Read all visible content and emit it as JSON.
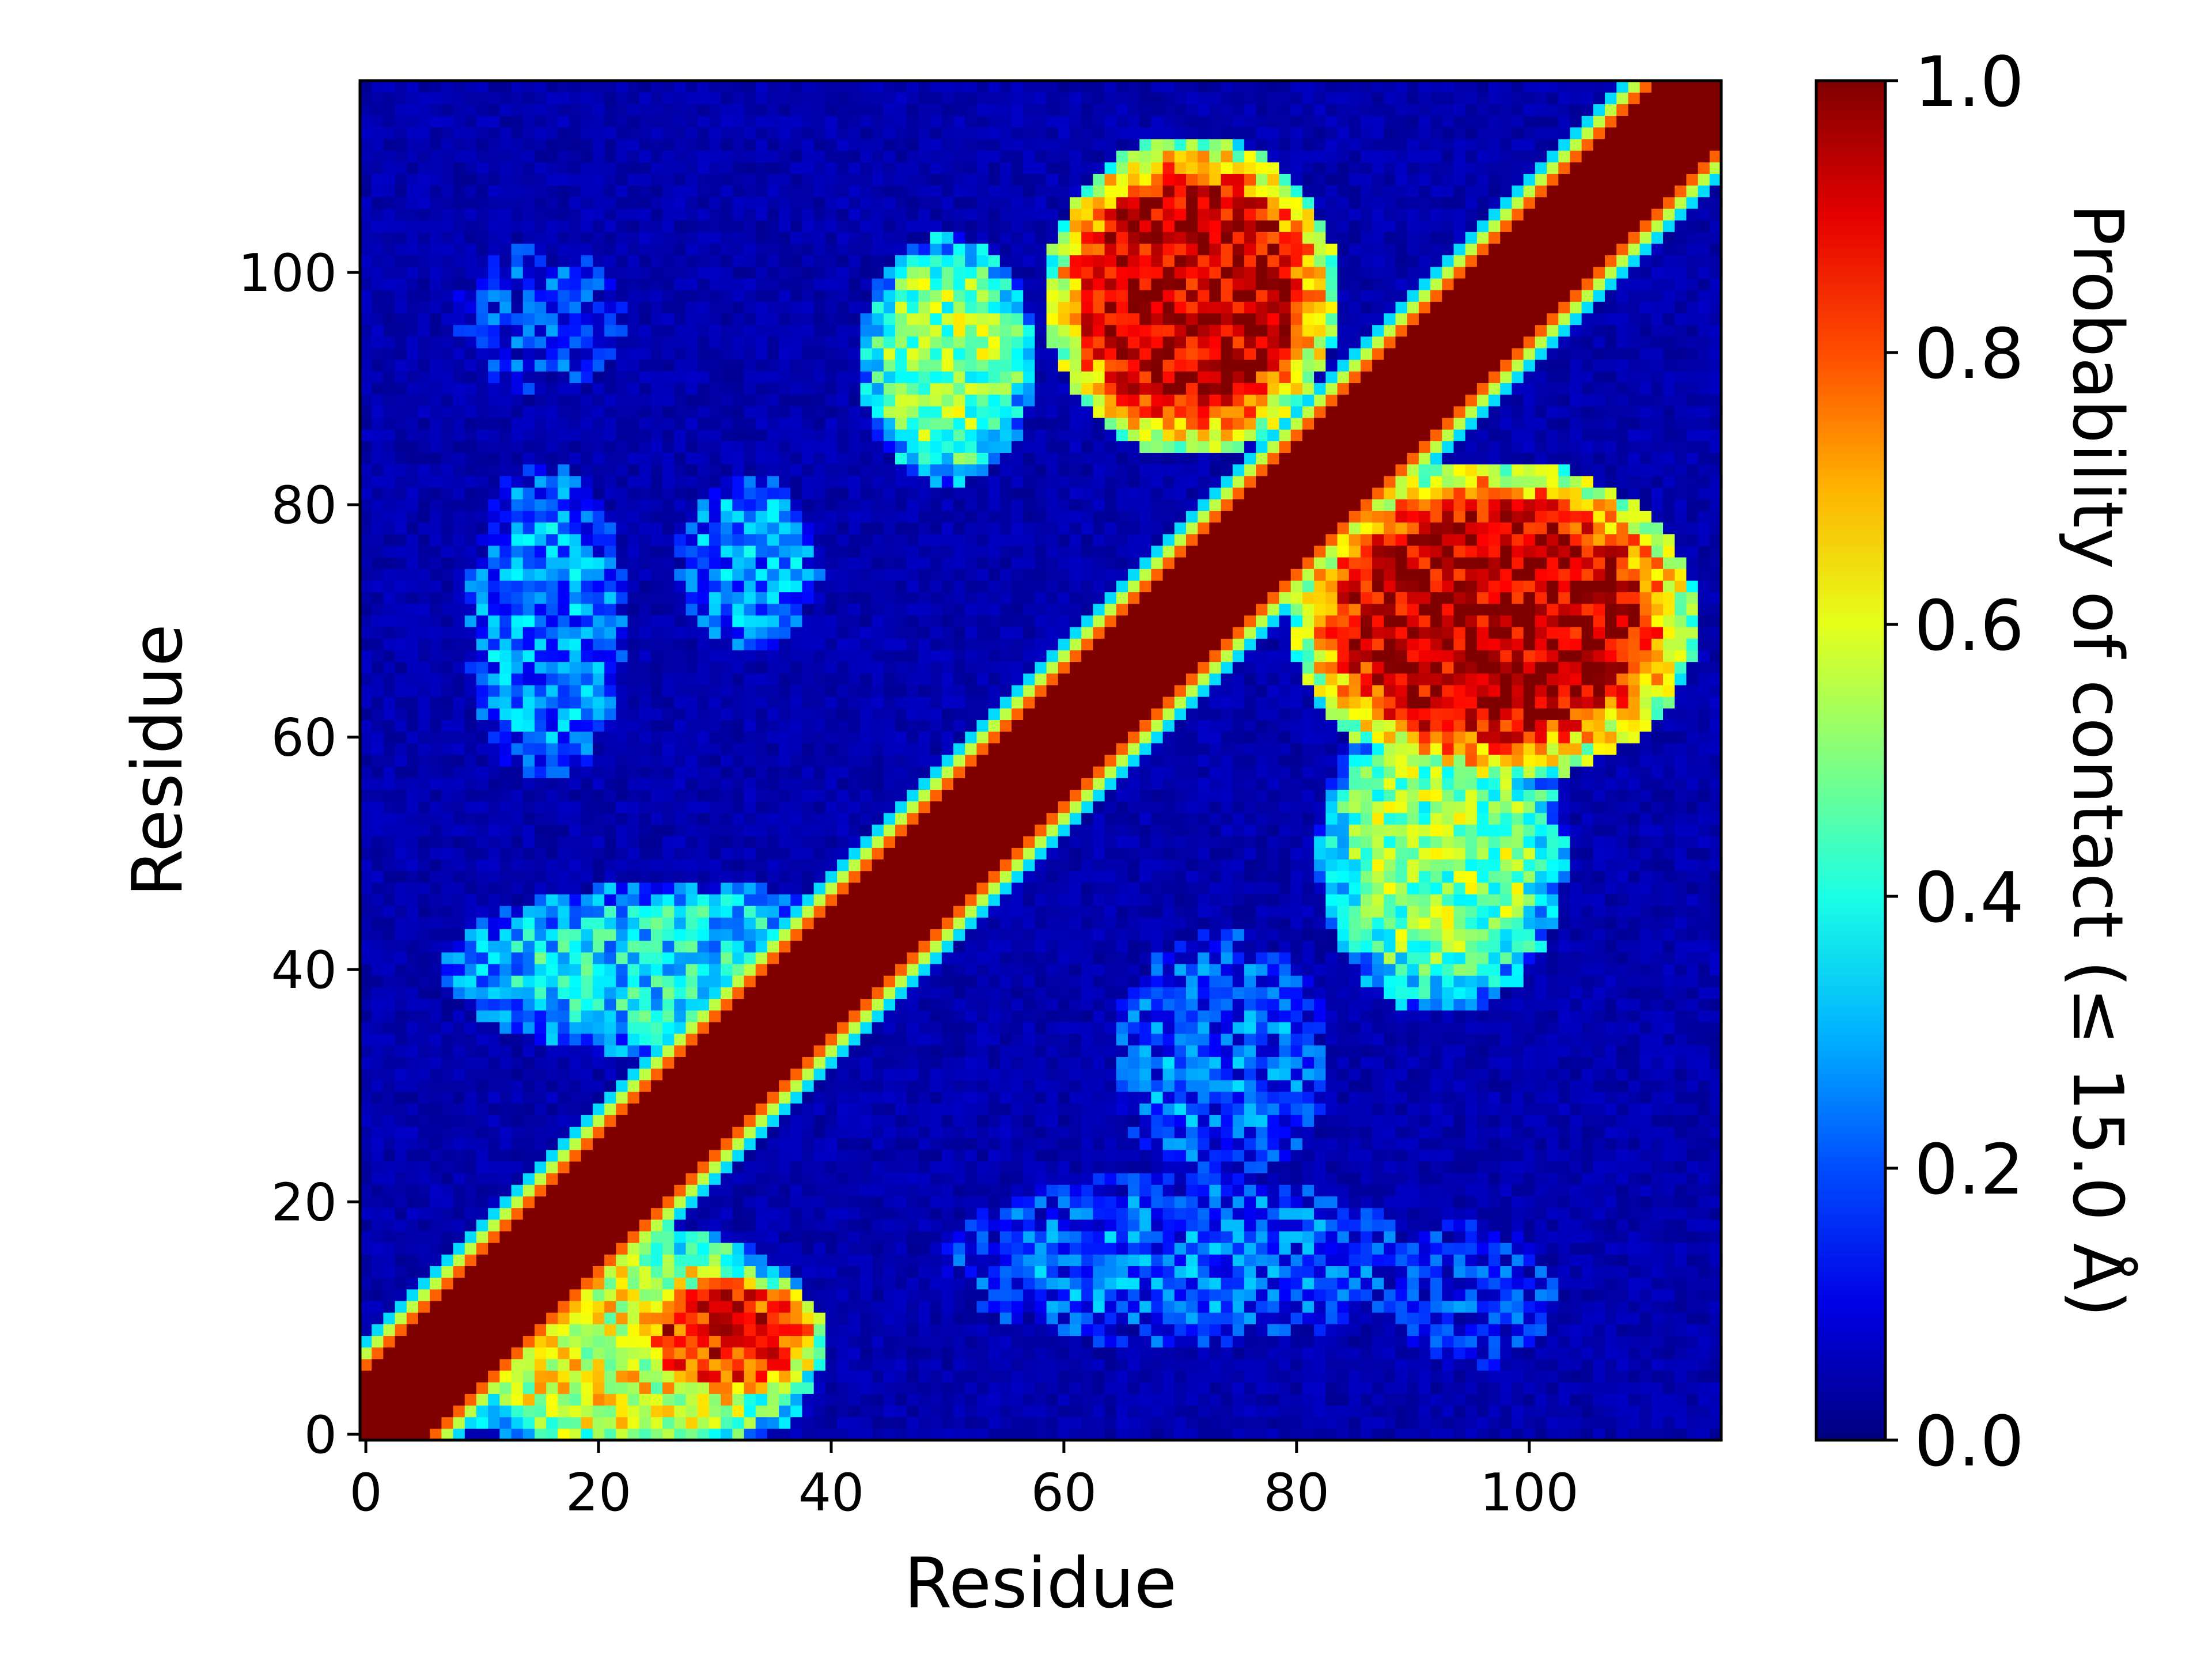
{
  "chart_data": {
    "type": "heatmap",
    "title": "",
    "xlabel": "Residue",
    "ylabel": "Residue",
    "colorbar_label": "Probability of contact (≤ 15.0 Å)",
    "colormap": "jet",
    "n_residues": 117,
    "xlim": [
      -0.5,
      116.5
    ],
    "ylim": [
      -0.5,
      116.5
    ],
    "x_ticks": [
      0,
      20,
      40,
      60,
      80,
      100
    ],
    "y_ticks": [
      0,
      20,
      40,
      60,
      80,
      100
    ],
    "colorbar_range": [
      0.0,
      1.0
    ],
    "colorbar_ticks": [
      "0.0",
      "0.2",
      "0.4",
      "0.6",
      "0.8",
      "1.0"
    ],
    "diagonal_band": {
      "half_width": 5,
      "value": 1.0
    },
    "contact_regions": [
      {
        "i": [
          11,
          35
        ],
        "j": [
          0,
          15
        ],
        "value": 0.6
      },
      {
        "i": [
          25,
          37
        ],
        "j": [
          5,
          12
        ],
        "value": 0.85
      },
      {
        "i": [
          12,
          42
        ],
        "j": [
          35,
          45
        ],
        "value": 0.35
      },
      {
        "i": [
          45,
          55
        ],
        "j": [
          85,
          100
        ],
        "value": 0.5
      },
      {
        "i": [
          62,
          80
        ],
        "j": [
          88,
          108
        ],
        "value": 0.95
      },
      {
        "i": [
          84,
          110
        ],
        "j": [
          60,
          80
        ],
        "value": 0.95
      },
      {
        "i": [
          85,
          100
        ],
        "j": [
          40,
          60
        ],
        "value": 0.5
      },
      {
        "i": [
          11,
          20
        ],
        "j": [
          60,
          80
        ],
        "value": 0.25
      },
      {
        "i": [
          29,
          37
        ],
        "j": [
          70,
          80
        ],
        "value": 0.25
      },
      {
        "i": [
          10,
          20
        ],
        "j": [
          92,
          100
        ],
        "value": 0.15
      },
      {
        "i": [
          67,
          80
        ],
        "j": [
          25,
          40
        ],
        "value": 0.2
      },
      {
        "i": [
          55,
          85
        ],
        "j": [
          10,
          20
        ],
        "value": 0.2
      },
      {
        "i": [
          90,
          100
        ],
        "j": [
          8,
          16
        ],
        "value": 0.15
      }
    ]
  }
}
